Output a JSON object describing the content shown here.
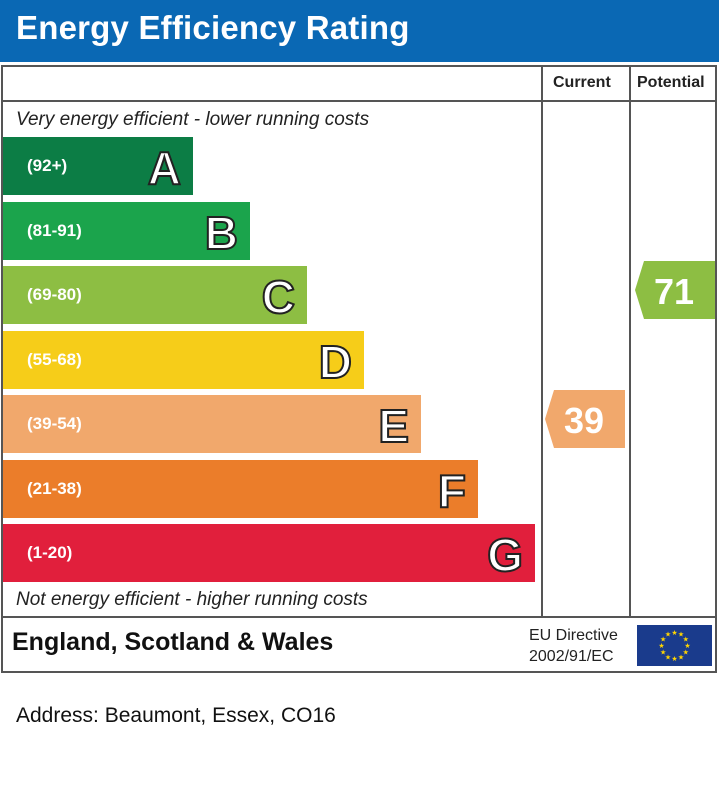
{
  "title": "Energy Efficiency Rating",
  "columns": {
    "current": "Current",
    "potential": "Potential"
  },
  "top_caption": "Very energy efficient - lower running costs",
  "bottom_caption": "Not energy efficient - higher running costs",
  "bands": [
    {
      "letter": "A",
      "range": "(92+)",
      "color": "#0c7d45"
    },
    {
      "letter": "B",
      "range": "(81-91)",
      "color": "#1ba44c"
    },
    {
      "letter": "C",
      "range": "(69-80)",
      "color": "#8dbe43"
    },
    {
      "letter": "D",
      "range": "(55-68)",
      "color": "#f6cd19"
    },
    {
      "letter": "E",
      "range": "(39-54)",
      "color": "#f1a86c"
    },
    {
      "letter": "F",
      "range": "(21-38)",
      "color": "#eb7d2a"
    },
    {
      "letter": "G",
      "range": "(1-20)",
      "color": "#e11f3c"
    }
  ],
  "current": {
    "value": "39",
    "band": "E",
    "color": "#f1a86c"
  },
  "potential": {
    "value": "71",
    "band": "C",
    "color": "#8dbe43"
  },
  "footer": {
    "country": "England, Scotland & Wales",
    "directive_line1": "EU Directive",
    "directive_line2": "2002/91/EC",
    "flag_color": "#1a3b8c",
    "star_color": "#ffd500"
  },
  "address": "Address: Beaumont, Essex, CO16"
}
